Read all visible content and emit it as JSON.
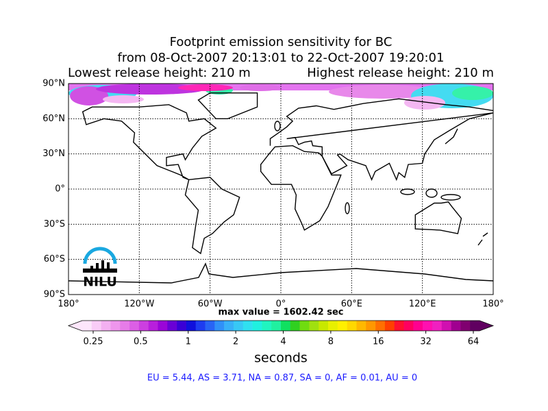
{
  "title": {
    "line1": "Footprint emission sensitivity for BC",
    "line2": "from 08-Oct-2007 20:13:01 to 22-Oct-2007 19:20:01",
    "left": "Lowest release height: 210 m",
    "right": "Highest release height: 210 m"
  },
  "map": {
    "latticks": [
      {
        "value": 90,
        "label": "90°N"
      },
      {
        "value": 60,
        "label": "60°N"
      },
      {
        "value": 30,
        "label": "30°N"
      },
      {
        "value": 0,
        "label": "0°"
      },
      {
        "value": -30,
        "label": "30°S"
      },
      {
        "value": -60,
        "label": "60°S"
      },
      {
        "value": -90,
        "label": "90°S"
      }
    ],
    "lonticks": [
      {
        "value": -180,
        "label": "180°"
      },
      {
        "value": -120,
        "label": "120°W"
      },
      {
        "value": -60,
        "label": "60°W"
      },
      {
        "value": 0,
        "label": "0°"
      },
      {
        "value": 60,
        "label": "60°E"
      },
      {
        "value": 120,
        "label": "120°E"
      },
      {
        "value": 180,
        "label": "180°"
      }
    ],
    "max_value": "max value = 1602.42 sec"
  },
  "colorbar": {
    "ticks": [
      0.25,
      0.5,
      1,
      2,
      4,
      8,
      16,
      32,
      64
    ],
    "label": "seconds",
    "colors": [
      "#fde6fb",
      "#f9ccf6",
      "#f3b0f1",
      "#ee96ec",
      "#e67ce8",
      "#dc5fe5",
      "#cc3fe0",
      "#b81fdc",
      "#9a05d8",
      "#6a00d6",
      "#3a00d6",
      "#1010dc",
      "#1e3cf0",
      "#2864f5",
      "#3090f8",
      "#38b0f8",
      "#38c8f5",
      "#30e0f0",
      "#20f0e0",
      "#20f5c0",
      "#20f0a0",
      "#10e060",
      "#30d020",
      "#70dc10",
      "#a0e010",
      "#c8e800",
      "#e8f000",
      "#fff000",
      "#ffd800",
      "#ffb800",
      "#ff9800",
      "#ff7000",
      "#ff4000",
      "#ff1030",
      "#ff0060",
      "#ff0090",
      "#ff10b0",
      "#f020c0",
      "#d010b0",
      "#a00090",
      "#800070",
      "#600060"
    ]
  },
  "footer": "EU = 5.44,  AS = 3.71,  NA = 0.87,  SA = 0,  AF = 0.01,  AU = 0",
  "logo": {
    "text": "NILU"
  }
}
